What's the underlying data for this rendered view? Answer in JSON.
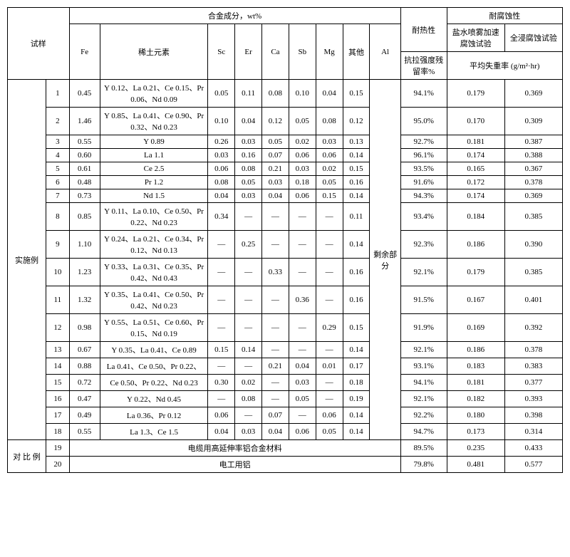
{
  "headers": {
    "sample": "试样",
    "alloy": "合金成分，wt%",
    "heat": "耐热性",
    "corrosion": "耐腐蚀性",
    "fe": "Fe",
    "rare": "稀土元素",
    "sc": "Sc",
    "er": "Er",
    "ca": "Ca",
    "sb": "Sb",
    "mg": "Mg",
    "other": "其他",
    "al": "Al",
    "tensile": "抗拉强度残留率%",
    "salt": "盐水喷雾加速腐蚀试验",
    "immersion": "全浸腐蚀试验",
    "avg_loss": "平均失重率 (g/m²·hr)"
  },
  "section_example": "实施例",
  "section_compare": "对 比 例",
  "al_remaining": "剩余部分",
  "compare_row19_label": "电缆用高延伸率铝合金材料",
  "compare_row20_label": "电工用铝",
  "rows": [
    {
      "n": "1",
      "fe": "0.45",
      "rare": "Y 0.12、La 0.21、Ce 0.15、Pr 0.06、Nd 0.09",
      "sc": "0.05",
      "er": "0.11",
      "ca": "0.08",
      "sb": "0.10",
      "mg": "0.04",
      "other": "0.15",
      "tensile": "94.1%",
      "salt": "0.179",
      "imm": "0.369"
    },
    {
      "n": "2",
      "fe": "1.46",
      "rare": "Y 0.85、La 0.41、Ce 0.90、Pr 0.32、Nd 0.23",
      "sc": "0.10",
      "er": "0.04",
      "ca": "0.12",
      "sb": "0.05",
      "mg": "0.08",
      "other": "0.12",
      "tensile": "95.0%",
      "salt": "0.170",
      "imm": "0.309"
    },
    {
      "n": "3",
      "fe": "0.55",
      "rare": "Y 0.89",
      "sc": "0.26",
      "er": "0.03",
      "ca": "0.05",
      "sb": "0.02",
      "mg": "0.03",
      "other": "0.13",
      "tensile": "92.7%",
      "salt": "0.181",
      "imm": "0.387"
    },
    {
      "n": "4",
      "fe": "0.60",
      "rare": "La 1.1",
      "sc": "0.03",
      "er": "0.16",
      "ca": "0.07",
      "sb": "0.06",
      "mg": "0.06",
      "other": "0.14",
      "tensile": "96.1%",
      "salt": "0.174",
      "imm": "0.388"
    },
    {
      "n": "5",
      "fe": "0.61",
      "rare": "Ce 2.5",
      "sc": "0.06",
      "er": "0.08",
      "ca": "0.21",
      "sb": "0.03",
      "mg": "0.02",
      "other": "0.15",
      "tensile": "93.5%",
      "salt": "0.165",
      "imm": "0.367"
    },
    {
      "n": "6",
      "fe": "0.48",
      "rare": "Pr 1.2",
      "sc": "0.08",
      "er": "0.05",
      "ca": "0.03",
      "sb": "0.18",
      "mg": "0.05",
      "other": "0.16",
      "tensile": "91.6%",
      "salt": "0.172",
      "imm": "0.378"
    },
    {
      "n": "7",
      "fe": "0.73",
      "rare": "Nd 1.5",
      "sc": "0.04",
      "er": "0.03",
      "ca": "0.04",
      "sb": "0.06",
      "mg": "0.15",
      "other": "0.14",
      "tensile": "94.3%",
      "salt": "0.174",
      "imm": "0.369"
    },
    {
      "n": "8",
      "fe": "0.85",
      "rare": "Y 0.11、La 0.10、Ce 0.50、Pr 0.22、Nd 0.23",
      "sc": "0.34",
      "er": "—",
      "ca": "—",
      "sb": "—",
      "mg": "—",
      "other": "0.11",
      "tensile": "93.4%",
      "salt": "0.184",
      "imm": "0.385"
    },
    {
      "n": "9",
      "fe": "1.10",
      "rare": "Y 0.24、La 0.21、Ce 0.34、Pr 0.12、Nd 0.13",
      "sc": "—",
      "er": "0.25",
      "ca": "—",
      "sb": "—",
      "mg": "—",
      "other": "0.14",
      "tensile": "92.3%",
      "salt": "0.186",
      "imm": "0.390"
    },
    {
      "n": "10",
      "fe": "1.23",
      "rare": "Y 0.33、La 0.31、Ce 0.35、Pr 0.42、Nd 0.43",
      "sc": "—",
      "er": "—",
      "ca": "0.33",
      "sb": "—",
      "mg": "—",
      "other": "0.16",
      "tensile": "92.1%",
      "salt": "0.179",
      "imm": "0.385"
    },
    {
      "n": "11",
      "fe": "1.32",
      "rare": "Y 0.35、La 0.41、Ce 0.50、Pr 0.42、Nd 0.23",
      "sc": "—",
      "er": "—",
      "ca": "—",
      "sb": "0.36",
      "mg": "—",
      "other": "0.16",
      "tensile": "91.5%",
      "salt": "0.167",
      "imm": "0.401"
    },
    {
      "n": "12",
      "fe": "0.98",
      "rare": "Y 0.55、La 0.51、Ce 0.60、Pr 0.15、Nd 0.19",
      "sc": "—",
      "er": "—",
      "ca": "—",
      "sb": "—",
      "mg": "0.29",
      "other": "0.15",
      "tensile": "91.9%",
      "salt": "0.169",
      "imm": "0.392"
    },
    {
      "n": "13",
      "fe": "0.67",
      "rare": "Y 0.35、La 0.41、Ce 0.89",
      "sc": "0.15",
      "er": "0.14",
      "ca": "—",
      "sb": "—",
      "mg": "—",
      "other": "0.14",
      "tensile": "92.1%",
      "salt": "0.186",
      "imm": "0.378"
    },
    {
      "n": "14",
      "fe": "0.88",
      "rare": "La 0.41、Ce 0.50、Pr 0.22、",
      "sc": "—",
      "er": "—",
      "ca": "0.21",
      "sb": "0.04",
      "mg": "0.01",
      "other": "0.17",
      "tensile": "93.1%",
      "salt": "0.183",
      "imm": "0.383"
    },
    {
      "n": "15",
      "fe": "0.72",
      "rare": "Ce 0.50、Pr 0.22、Nd 0.23",
      "sc": "0.30",
      "er": "0.02",
      "ca": "—",
      "sb": "0.03",
      "mg": "—",
      "other": "0.18",
      "tensile": "94.1%",
      "salt": "0.181",
      "imm": "0.377"
    },
    {
      "n": "16",
      "fe": "0.47",
      "rare": "Y 0.22、Nd 0.45",
      "sc": "—",
      "er": "0.08",
      "ca": "—",
      "sb": "0.05",
      "mg": "—",
      "other": "0.19",
      "tensile": "92.1%",
      "salt": "0.182",
      "imm": "0.393"
    },
    {
      "n": "17",
      "fe": "0.49",
      "rare": "La 0.36、Pr 0.12",
      "sc": "0.06",
      "er": "—",
      "ca": "0.07",
      "sb": "—",
      "mg": "0.06",
      "other": "0.14",
      "tensile": "92.2%",
      "salt": "0.180",
      "imm": "0.398"
    },
    {
      "n": "18",
      "fe": "0.55",
      "rare": "La 1.3、Ce 1.5",
      "sc": "0.04",
      "er": "0.03",
      "ca": "0.04",
      "sb": "0.06",
      "mg": "0.05",
      "other": "0.14",
      "tensile": "94.7%",
      "salt": "0.173",
      "imm": "0.314"
    }
  ],
  "compare": [
    {
      "n": "19",
      "tensile": "89.5%",
      "salt": "0.235",
      "imm": "0.433"
    },
    {
      "n": "20",
      "tensile": "79.8%",
      "salt": "0.481",
      "imm": "0.577"
    }
  ]
}
